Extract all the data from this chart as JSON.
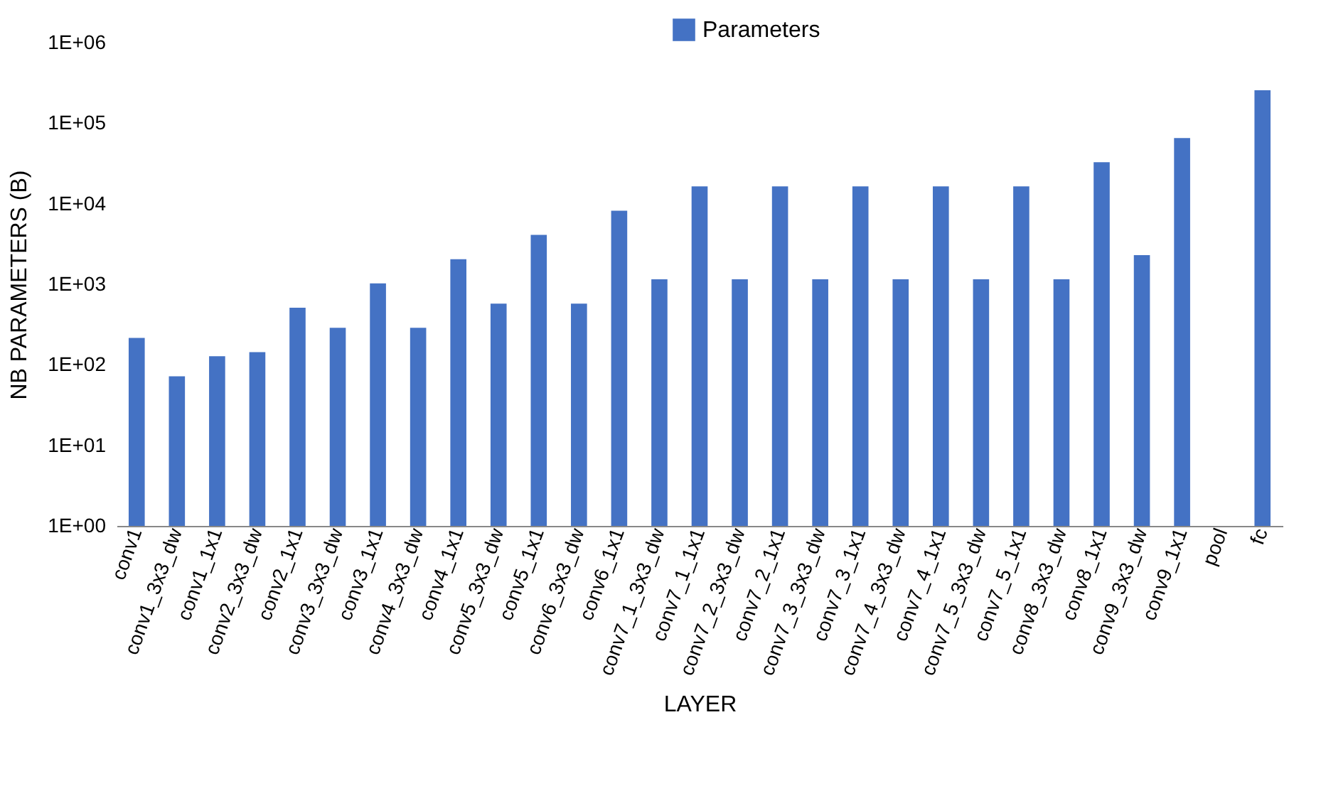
{
  "chart_data": {
    "type": "bar",
    "xlabel": "LAYER",
    "ylabel": "NB PARAMETERS (B)",
    "categories": [
      "conv1",
      "conv1_3x3_dw",
      "conv1_1x1",
      "conv2_3x3_dw",
      "conv2_1x1",
      "conv3_3x3_dw",
      "conv3_1x1",
      "conv4_3x3_dw",
      "conv4_1x1",
      "conv5_3x3_dw",
      "conv5_1x1",
      "conv6_3x3_dw",
      "conv6_1x1",
      "conv7_1_3x3_dw",
      "conv7_1_1x1",
      "conv7_2_3x3_dw",
      "conv7_2_1x1",
      "conv7_3_3x3_dw",
      "conv7_3_1x1",
      "conv7_4_3x3_dw",
      "conv7_4_1x1",
      "conv7_5_3x3_dw",
      "conv7_5_1x1",
      "conv8_3x3_dw",
      "conv8_1x1",
      "conv9_3x3_dw",
      "conv9_1x1",
      "pool",
      "fc"
    ],
    "series": [
      {
        "name": "Parameters",
        "color": "#4472c4",
        "values": [
          216,
          72,
          128,
          144,
          512,
          288,
          1024,
          288,
          2048,
          576,
          4096,
          576,
          8192,
          1152,
          16384,
          1152,
          16384,
          1152,
          16384,
          1152,
          16384,
          1152,
          16384,
          1152,
          32768,
          2304,
          65536,
          null,
          256000
        ]
      }
    ],
    "log": true,
    "ylim": [
      1,
      1000000
    ],
    "yticks": [
      {
        "value": 1,
        "label": "1E+00"
      },
      {
        "value": 10,
        "label": "1E+01"
      },
      {
        "value": 100,
        "label": "1E+02"
      },
      {
        "value": 1000,
        "label": "1E+03"
      },
      {
        "value": 10000,
        "label": "1E+04"
      },
      {
        "value": 100000,
        "label": "1E+05"
      },
      {
        "value": 1000000,
        "label": "1E+06"
      }
    ],
    "grid": false,
    "legend": "top"
  }
}
